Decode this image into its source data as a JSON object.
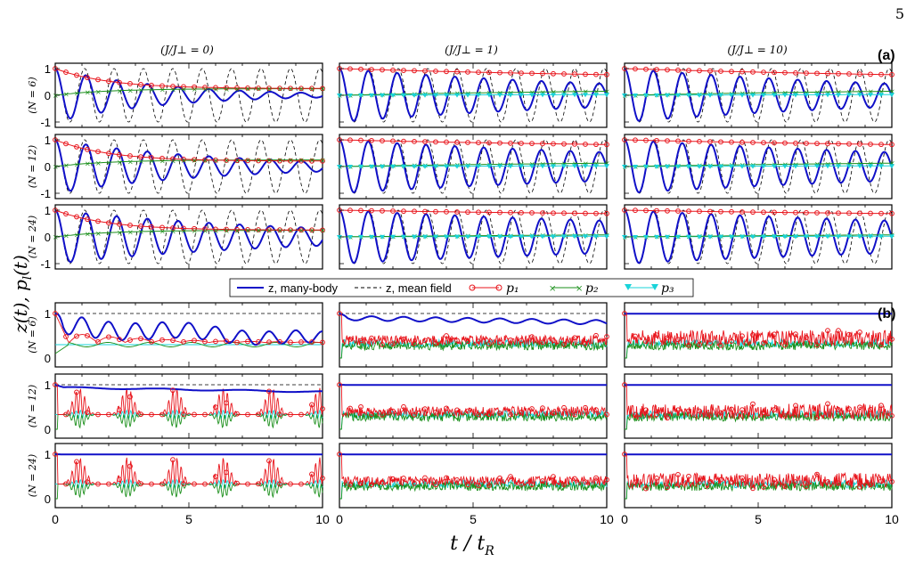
{
  "page_number": "5",
  "figure": {
    "ylabel_main": "z(t),  p_l(t)",
    "xlabel_main": "t / t_R",
    "columns": [
      "(J/J⊥ = 0)",
      "(J/J⊥ = 1)",
      "(J/J⊥ = 10)"
    ],
    "rows": [
      "(N = 6)",
      "(N = 12)",
      "(N = 24)"
    ],
    "panels": [
      "(a)",
      "(b)"
    ],
    "legend": [
      {
        "label": "z,  many-body",
        "color": "#1010c8",
        "style": "solid"
      },
      {
        "label": "z,  mean field",
        "color": "#000000",
        "style": "dashed"
      },
      {
        "label": "p₁",
        "color": "#e8141b",
        "style": "circle"
      },
      {
        "label": "p₂",
        "color": "#1a8f1a",
        "style": "x"
      },
      {
        "label": "p₃",
        "color": "#19d3d9",
        "style": "triangle"
      }
    ],
    "x_ticks": [
      "0",
      "5",
      "10"
    ],
    "y_ticks_a": [
      "-1",
      "0",
      "1"
    ],
    "y_ticks_b": [
      "0",
      "1"
    ]
  },
  "chart_data": [
    {
      "type": "line",
      "panel": "(a)",
      "description_axes": {
        "xlim": [
          0,
          10
        ],
        "ylim": [
          -1.2,
          1.2
        ]
      },
      "grid": "3x3",
      "series": [
        {
          "name": "z,  many-body",
          "shape": "damped cosine, period ~1.15 t_R, amplitude 1 decaying (faster for J/J⊥=0, small N)"
        },
        {
          "name": "z,  mean field",
          "shape": "undamped cosine, amplitude 1, period ~1.15 t_R"
        },
        {
          "name": "p₁",
          "values_start_end": {
            "J0": [
              1.0,
              0.25
            ],
            "J1": [
              1.0,
              0.6
            ],
            "J10": [
              1.0,
              0.55
            ]
          }
        },
        {
          "name": "p₂",
          "values_start_end": {
            "J0": [
              0.0,
              0.25
            ],
            "J1": [
              0.0,
              0.3
            ],
            "J10": [
              0.0,
              0.3
            ]
          }
        },
        {
          "name": "p₃",
          "values_start_end": {
            "J0": [
              0.0,
              0.0
            ],
            "J1": [
              0.0,
              0.05
            ],
            "J10": [
              0.0,
              0.05
            ]
          }
        }
      ]
    },
    {
      "type": "line",
      "panel": "(b)",
      "description_axes": {
        "xlim": [
          0,
          10
        ],
        "ylim": [
          -0.1,
          1.15
        ]
      },
      "grid": "3x3",
      "series": [
        {
          "name": "z,  many-body",
          "levels": {
            "J0": [
              0.55,
              0.92,
              1.0
            ],
            "J1": [
              0.85,
              1.0,
              1.0
            ],
            "J10": [
              1.0,
              1.0,
              1.0
            ]
          }
        },
        {
          "name": "z,  mean field",
          "value": 1.0
        },
        {
          "name": "p₁",
          "mean_level": 0.4
        },
        {
          "name": "p₂",
          "mean_level": 0.28
        },
        {
          "name": "p₃",
          "mean_level": 0.33
        }
      ]
    }
  ]
}
